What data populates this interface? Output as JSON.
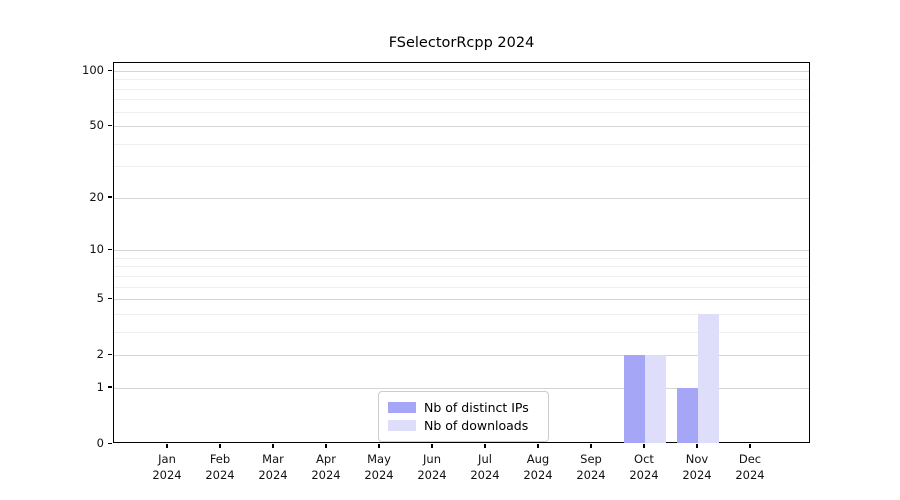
{
  "title": "FSelectorRcpp 2024",
  "chart_data": {
    "type": "bar",
    "title": "FSelectorRcpp 2024",
    "x_months": [
      "Jan",
      "Feb",
      "Mar",
      "Apr",
      "May",
      "Jun",
      "Jul",
      "Aug",
      "Sep",
      "Oct",
      "Nov",
      "Dec"
    ],
    "x_year": "2024",
    "series": [
      {
        "name": "Nb of distinct IPs",
        "color": "#a6a6f6",
        "values": [
          0,
          0,
          0,
          0,
          0,
          0,
          0,
          0,
          0,
          2,
          1,
          0
        ]
      },
      {
        "name": "Nb of downloads",
        "color": "#dedefa",
        "values": [
          0,
          0,
          0,
          0,
          0,
          0,
          0,
          0,
          0,
          2,
          4,
          0
        ]
      }
    ],
    "yscale": "log1p",
    "ylim": [
      0,
      112
    ],
    "y_major_ticks": [
      0,
      1,
      2,
      5,
      10,
      20,
      50,
      100
    ],
    "y_minor_gridlines": [
      3,
      4,
      6,
      7,
      8,
      9,
      30,
      40,
      60,
      70,
      80,
      90
    ],
    "grid": "horizontal, major and minor gridlines",
    "legend_position": "lower center inside plot"
  },
  "colors": {
    "distinct_ips_bar": "#a6a6f6",
    "downloads_bar": "#dedefa",
    "major_gridline": "#d4d4d4",
    "minor_gridline": "#efefef",
    "axis_frame": "#000000",
    "background": "#ffffff"
  }
}
